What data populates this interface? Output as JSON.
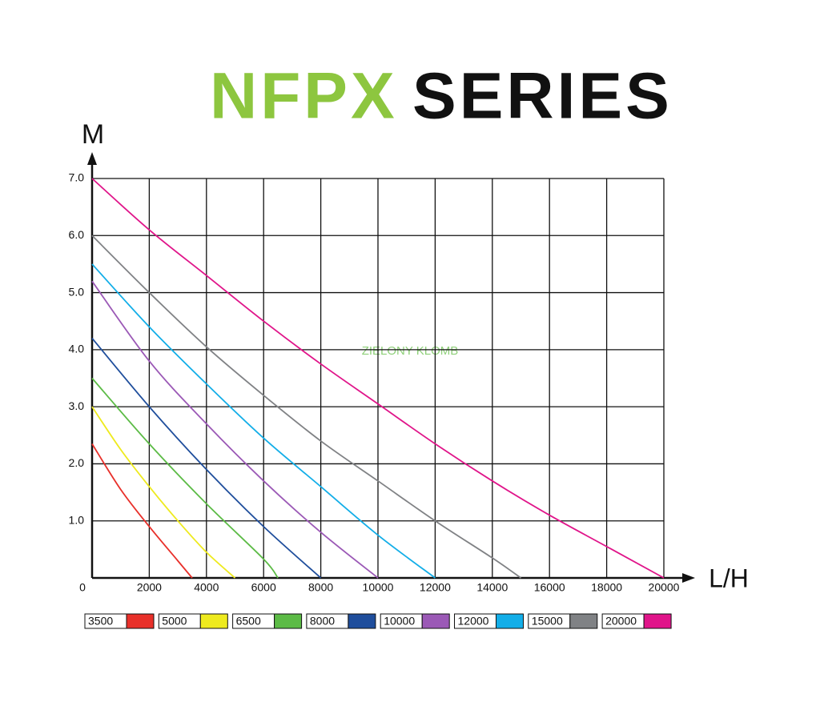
{
  "chart_data": {
    "type": "line",
    "title_parts": [
      "NFPX",
      "SERIES"
    ],
    "title_colors": [
      "#8dc63f",
      "#111111"
    ],
    "watermark": "ZIELONY KLOMB",
    "x_label": "L/H",
    "y_label": "M",
    "xlim": [
      0,
      20000
    ],
    "ylim": [
      0,
      7
    ],
    "xticks": [
      0,
      2000,
      4000,
      6000,
      8000,
      10000,
      12000,
      14000,
      16000,
      18000,
      20000
    ],
    "yticks": [
      {
        "value": 1,
        "label": "1.0"
      },
      {
        "value": 2,
        "label": "2.0"
      },
      {
        "value": 3,
        "label": "3.0"
      },
      {
        "value": 4,
        "label": "4.0"
      },
      {
        "value": 5,
        "label": "5.0"
      },
      {
        "value": 6,
        "label": "6.0"
      },
      {
        "value": 7,
        "label": "7.0"
      }
    ],
    "grid": true,
    "legend": "bottom",
    "series": [
      {
        "name": "3500",
        "color": "#e8302a",
        "x": [
          0,
          1000,
          2000,
          3000,
          3500
        ],
        "values": [
          2.35,
          1.55,
          0.9,
          0.3,
          0
        ]
      },
      {
        "name": "5000",
        "color": "#eeea1e",
        "x": [
          0,
          1000,
          2000,
          3000,
          4000,
          5000
        ],
        "values": [
          3.0,
          2.25,
          1.6,
          1.0,
          0.45,
          0
        ]
      },
      {
        "name": "6500",
        "color": "#5cbb46",
        "x": [
          0,
          2000,
          4000,
          6000,
          6500
        ],
        "values": [
          3.5,
          2.35,
          1.3,
          0.33,
          0
        ]
      },
      {
        "name": "8000",
        "color": "#1f4e9c",
        "x": [
          0,
          2000,
          4000,
          6000,
          8000
        ],
        "values": [
          4.2,
          3.0,
          1.9,
          0.9,
          0
        ]
      },
      {
        "name": "10000",
        "color": "#9b59b6",
        "x": [
          0,
          2000,
          4000,
          6000,
          8000,
          10000
        ],
        "values": [
          5.2,
          3.8,
          2.7,
          1.7,
          0.8,
          0
        ]
      },
      {
        "name": "12000",
        "color": "#13aee8",
        "x": [
          0,
          2000,
          4000,
          6000,
          8000,
          10000,
          12000
        ],
        "values": [
          5.5,
          4.4,
          3.4,
          2.45,
          1.6,
          0.75,
          0
        ]
      },
      {
        "name": "15000",
        "color": "#808285",
        "x": [
          0,
          2000,
          4000,
          6000,
          8000,
          10000,
          12000,
          14000,
          15000
        ],
        "values": [
          6.0,
          5.0,
          4.05,
          3.2,
          2.4,
          1.7,
          1.0,
          0.35,
          0
        ]
      },
      {
        "name": "20000",
        "color": "#e0158a",
        "x": [
          0,
          2000,
          4000,
          6000,
          8000,
          10000,
          12000,
          14000,
          16000,
          18000,
          20000
        ],
        "values": [
          7.0,
          6.1,
          5.3,
          4.5,
          3.75,
          3.05,
          2.35,
          1.7,
          1.1,
          0.55,
          0
        ]
      }
    ]
  }
}
